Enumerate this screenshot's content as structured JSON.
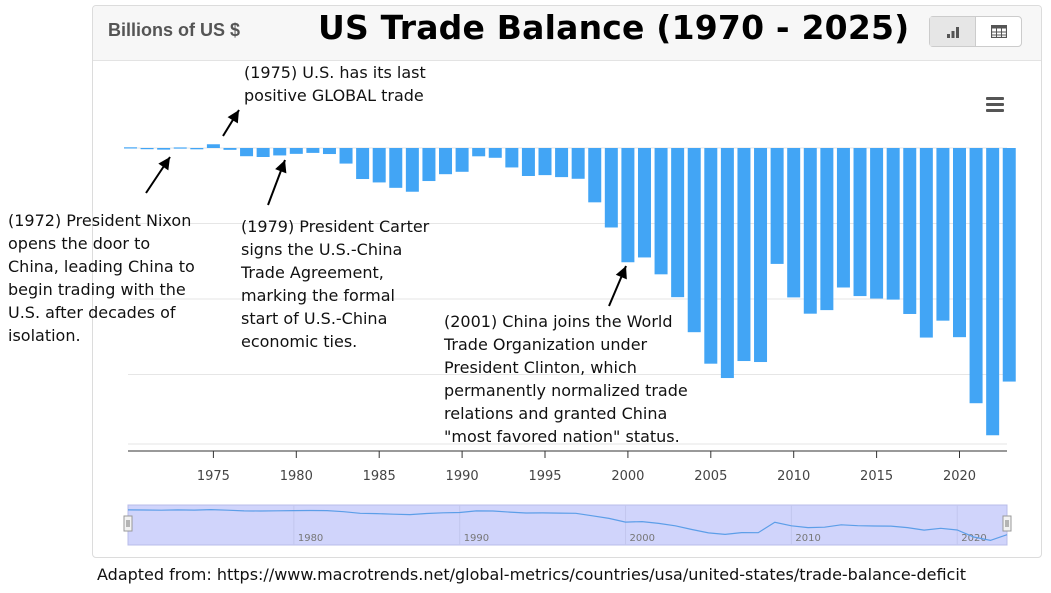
{
  "header": {
    "units_label": "Billions of US $",
    "title": "US Trade Balance (1970 - 2025)",
    "chart_view_icon": "bar-chart-icon",
    "table_view_icon": "table-icon",
    "menu_icon": "hamburger-menu-icon"
  },
  "colors": {
    "bar": "#42a5f5",
    "navigator_fill": "#d0d4fb",
    "navigator_line": "#5c9ee8"
  },
  "annotations": {
    "y1975": "(1975) U.S. has its last\npositive GLOBAL trade",
    "y1972": "(1972) President Nixon\nopens the door to\nChina, leading China to\nbegin trading with the\nU.S. after decades of\nisolation.",
    "y1979": "(1979) President Carter\nsigns the U.S.-China\nTrade Agreement,\nmarking the formal\nstart of U.S.-China\neconomic ties.",
    "y2001": "(2001) China joins the World\nTrade Organization under\nPresident Clinton, which\npermanently normalized trade\nrelations and granted China\n\"most favored nation\" status."
  },
  "source": "Adapted from: https://www.macrotrends.net/global-metrics/countries/usa/united-states/trade-balance-deficit",
  "chart_data": {
    "type": "bar",
    "title": "US Trade Balance (1970 - 2025)",
    "ylabel": "Billions of US $",
    "xlabel": "",
    "x": [
      1970,
      1971,
      1972,
      1973,
      1974,
      1975,
      1976,
      1977,
      1978,
      1979,
      1980,
      1981,
      1982,
      1983,
      1984,
      1985,
      1986,
      1987,
      1988,
      1989,
      1990,
      1991,
      1992,
      1993,
      1994,
      1995,
      1996,
      1997,
      1998,
      1999,
      2000,
      2001,
      2002,
      2003,
      2004,
      2005,
      2006,
      2007,
      2008,
      2009,
      2010,
      2011,
      2012,
      2013,
      2014,
      2015,
      2016,
      2017,
      2018,
      2019,
      2020,
      2021,
      2022,
      2023
    ],
    "values": [
      2.3,
      -1.3,
      -5.4,
      1.9,
      -4.3,
      12.4,
      -6.1,
      -27.2,
      -29.8,
      -24.6,
      -19.4,
      -16.2,
      -20.0,
      -51.6,
      -102.7,
      -114.0,
      -131.9,
      -144.8,
      -109.4,
      -86.7,
      -78.8,
      -27.5,
      -32.4,
      -64.4,
      -92.7,
      -89.8,
      -96.4,
      -101.9,
      -179.9,
      -263.2,
      -378.3,
      -362.4,
      -418.3,
      -493.9,
      -609.9,
      -714.2,
      -761.7,
      -705.4,
      -708.7,
      -383.8,
      -494.7,
      -548.6,
      -536.8,
      -461.9,
      -490.3,
      -498.5,
      -502.0,
      -549.6,
      -627.7,
      -571.7,
      -626.4,
      -845.1,
      -951.2,
      -773.4
    ],
    "x_ticks": [
      1975,
      1980,
      1985,
      1990,
      1995,
      2000,
      2005,
      2010,
      2015,
      2020
    ],
    "ylim": [
      -1000,
      50
    ],
    "navigator_ticks": [
      1980,
      1990,
      2000,
      2010,
      2020
    ],
    "grid": true,
    "legend": "none"
  }
}
